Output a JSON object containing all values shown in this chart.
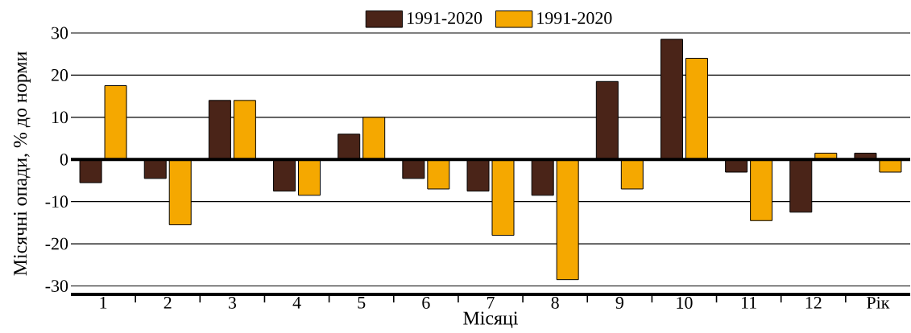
{
  "chart_data": {
    "type": "bar",
    "xlabel": "Місяці",
    "ylabel": "Місячні опади, % до норми",
    "categories": [
      "1",
      "2",
      "3",
      "4",
      "5",
      "6",
      "7",
      "8",
      "9",
      "10",
      "11",
      "12",
      "Рік"
    ],
    "series": [
      {
        "name": "1991-2020",
        "color": "#4a2418",
        "values": [
          -5.5,
          -4.5,
          14,
          -7.5,
          6,
          -4.5,
          -7.5,
          -8.5,
          18.5,
          28.5,
          -3,
          -12.5,
          1.5
        ]
      },
      {
        "name": "1991-2020",
        "color": "#f5a800",
        "values": [
          17.5,
          -15.5,
          14,
          -8.5,
          10,
          -7,
          -18,
          -28.5,
          -7,
          24,
          -14.5,
          1.5,
          -3
        ]
      }
    ],
    "ylim": [
      -32,
      30
    ],
    "yticks": [
      -30,
      -20,
      -10,
      0,
      10,
      20,
      30
    ],
    "grid": "y",
    "legend": "top"
  }
}
